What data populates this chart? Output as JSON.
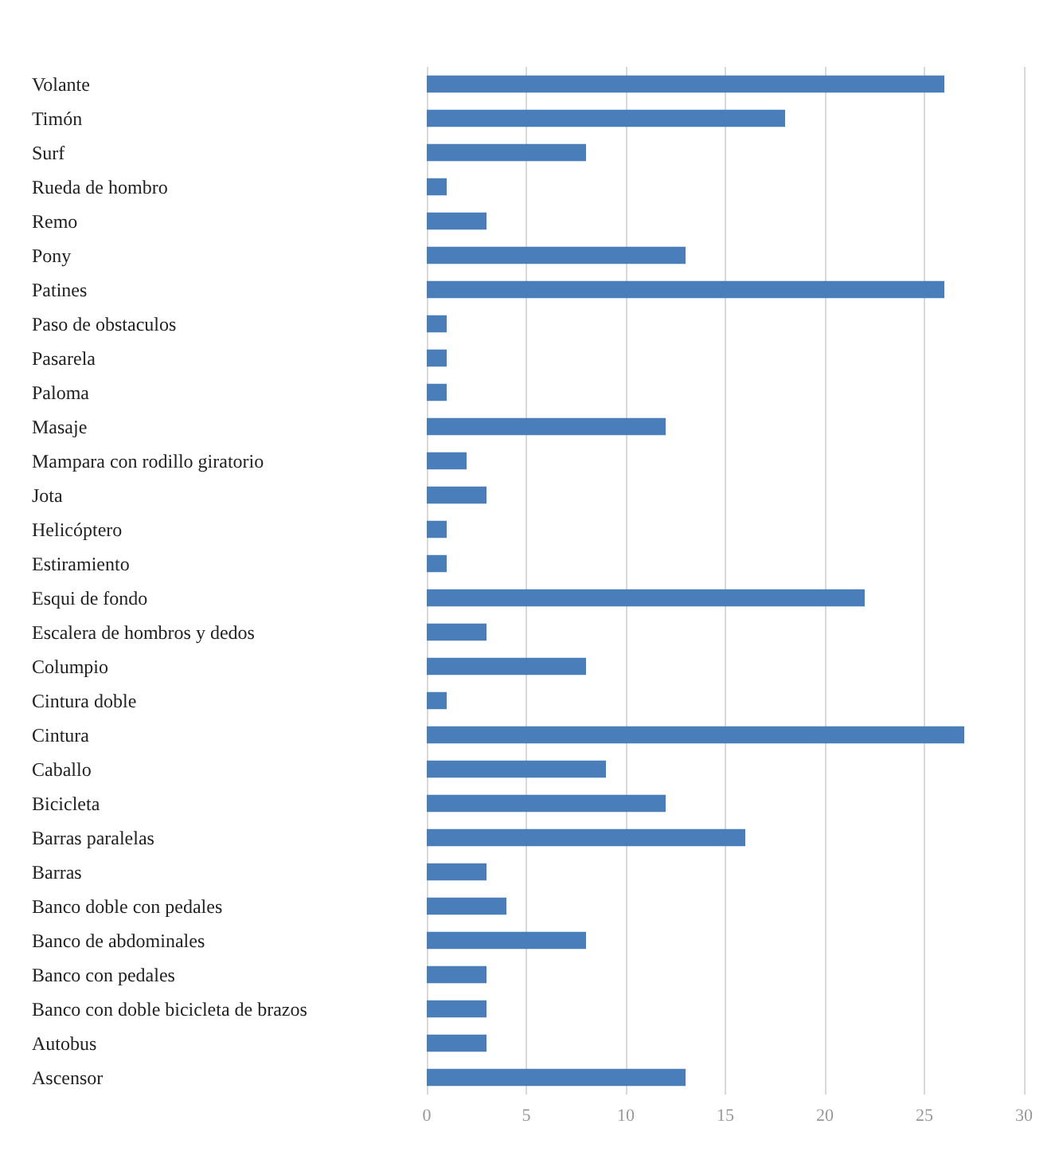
{
  "chart_data": {
    "type": "bar",
    "orientation": "horizontal",
    "categories": [
      "Volante",
      "Timón",
      "Surf",
      "Rueda de hombro",
      "Remo",
      "Pony",
      "Patines",
      "Paso de obstaculos",
      "Pasarela",
      "Paloma",
      "Masaje",
      "Mampara con rodillo giratorio",
      "Jota",
      "Helicóptero",
      "Estiramiento",
      "Esqui de fondo",
      "Escalera de hombros y dedos",
      "Columpio",
      "Cintura doble",
      "Cintura",
      "Caballo",
      "Bicicleta",
      "Barras paralelas",
      "Barras",
      "Banco doble con pedales",
      "Banco de abdominales",
      "Banco con pedales",
      "Banco con doble bicicleta de brazos",
      "Autobus",
      "Ascensor"
    ],
    "values": [
      26,
      18,
      8,
      1,
      3,
      13,
      26,
      1,
      1,
      1,
      12,
      2,
      3,
      1,
      1,
      22,
      3,
      8,
      1,
      27,
      9,
      12,
      16,
      3,
      4,
      8,
      3,
      3,
      3,
      13
    ],
    "color": "#4a7ebb",
    "xlim": [
      0,
      30
    ],
    "xticks": [
      0,
      5,
      10,
      15,
      20,
      25,
      30
    ],
    "grid": "x"
  }
}
